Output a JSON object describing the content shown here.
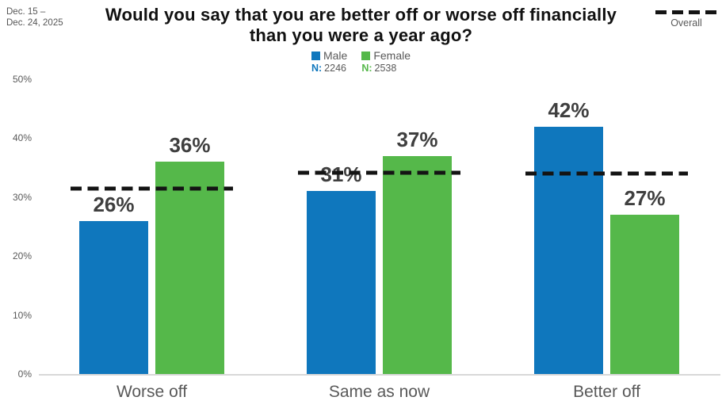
{
  "header": {
    "date_line1": "Dec. 15 –",
    "date_line2": "Dec. 24, 2025",
    "title_line1": "Would you say that you are better off or worse off financially",
    "title_line2": "than you were a year ago?",
    "overall_label": "Overall"
  },
  "legend": {
    "items": [
      {
        "label": "Male",
        "n_prefix": "N:",
        "n_value": "2246",
        "color": "#0f77bd"
      },
      {
        "label": "Female",
        "n_prefix": "N:",
        "n_value": "2538",
        "color": "#55b84a"
      }
    ]
  },
  "y_axis": {
    "ticks": [
      "0%",
      "10%",
      "20%",
      "30%",
      "40%",
      "50%"
    ]
  },
  "chart_data": {
    "type": "bar",
    "title": "Would you say that you are better off or worse off financially than you were a year ago?",
    "subtitle_date_range": "Dec. 15 – Dec. 24, 2025",
    "categories": [
      "Worse off",
      "Same as now",
      "Better off"
    ],
    "series": [
      {
        "name": "Male",
        "n": 2246,
        "color": "#0f77bd",
        "values": [
          26,
          31,
          42
        ]
      },
      {
        "name": "Female",
        "n": 2538,
        "color": "#55b84a",
        "values": [
          36,
          37,
          27
        ]
      }
    ],
    "overall_line": {
      "label": "Overall",
      "style": "dashed",
      "color": "#141414",
      "values": [
        31.4,
        34.2,
        34.0
      ]
    },
    "xlabel": "",
    "ylabel": "",
    "ylim": [
      0,
      50
    ],
    "y_ticks_percent": [
      0,
      10,
      20,
      30,
      40,
      50
    ],
    "value_suffix": "%",
    "grid": false,
    "legend_position": "top-center"
  }
}
